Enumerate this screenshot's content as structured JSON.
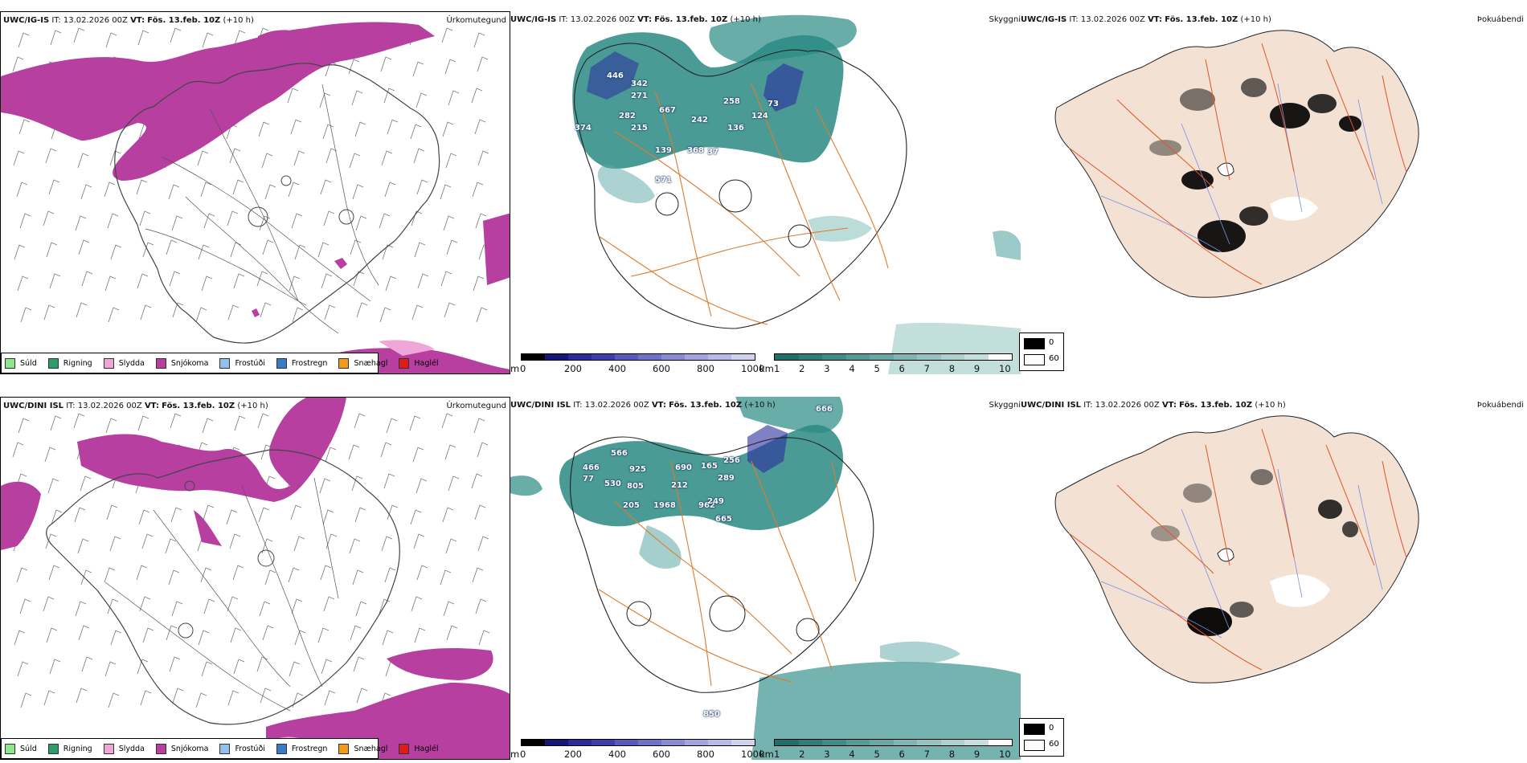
{
  "rows": [
    {
      "model": "UWC/IG-IS",
      "it_label": "IT:",
      "it_value": "13.02.2026 00Z",
      "vt_label": "VT:",
      "vt_value": "Fös. 13.feb. 10Z",
      "lead": "(+10 h)",
      "panel_titles": {
        "precip": "Úrkomutegund",
        "visibility": "Skyggni",
        "cloud": "Þokuábendi"
      },
      "peak_labels": [
        "446",
        "342",
        "271",
        "282",
        "374",
        "667",
        "215",
        "139",
        "368",
        "37",
        "258",
        "242",
        "136",
        "124",
        "73",
        "571"
      ]
    },
    {
      "model": "UWC/DINI ISL",
      "it_label": "IT:",
      "it_value": "13.02.2026 00Z",
      "vt_label": "VT:",
      "vt_value": "Fös. 13.feb. 10Z",
      "lead": "(+10 h)",
      "panel_titles": {
        "precip": "Úrkomutegund",
        "visibility": "Skyggni",
        "cloud": "Þokuábendi"
      },
      "peak_labels": [
        "566",
        "466",
        "77",
        "925",
        "530",
        "805",
        "205",
        "690",
        "212",
        "1968",
        "962",
        "165",
        "256",
        "289",
        "249",
        "665",
        "850",
        "666"
      ]
    }
  ],
  "precip_legend": [
    {
      "label": "Súld",
      "color": "#8ee88a"
    },
    {
      "label": "Rigning",
      "color": "#2e9c6a"
    },
    {
      "label": "Slydda",
      "color": "#f0a6d6"
    },
    {
      "label": "Snjókoma",
      "color": "#b63f9f"
    },
    {
      "label": "Frostúði",
      "color": "#8fc0ee"
    },
    {
      "label": "Frostregn",
      "color": "#3a7bc8"
    },
    {
      "label": "Snæhagl",
      "color": "#f39a1d"
    },
    {
      "label": "Haglél",
      "color": "#e01919"
    }
  ],
  "colors": {
    "snow": "#b63f9f",
    "sleet": "#f0a6d6",
    "fog_teal": "#2a8a84",
    "road": "#e07a2a",
    "land_tint": "#f3e1d3",
    "blue_elev": "#2b2b9c"
  },
  "elevation_bar": {
    "unit": "m",
    "ticks": [
      "0",
      "200",
      "400",
      "600",
      "800",
      "1000"
    ],
    "colors": [
      "#000000",
      "#15157a",
      "#2b2b9c",
      "#3d3db0",
      "#5858bd",
      "#7070c8",
      "#8a8ad3",
      "#a3a3dd",
      "#babae6",
      "#d3d3ef"
    ]
  },
  "visibility_bar": {
    "unit": "km",
    "ticks": [
      "1",
      "2",
      "3",
      "4",
      "5",
      "6",
      "7",
      "8",
      "9",
      "10"
    ],
    "colors": [
      "#1f6f6a",
      "#2e7f7a",
      "#3e8d88",
      "#529b96",
      "#67a8a4",
      "#7db6b2",
      "#94c4c0",
      "#acd2cf",
      "#c4e0de",
      "#ffffff"
    ]
  },
  "cloud_legend": {
    "values": [
      "0",
      "60"
    ],
    "colors": [
      "#000000",
      "#ffffff"
    ]
  }
}
